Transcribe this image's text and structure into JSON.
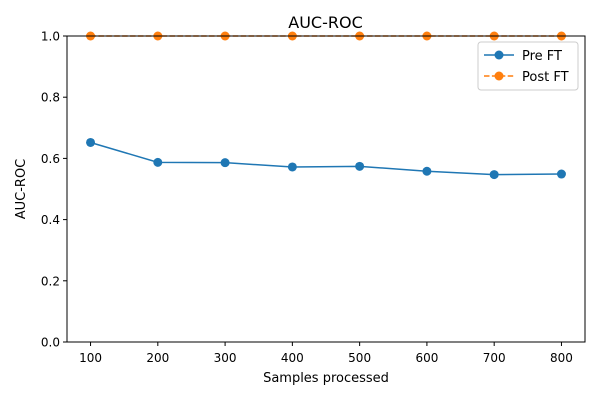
{
  "chart_data": {
    "type": "line",
    "title": "AUC-ROC",
    "xlabel": "Samples processed",
    "ylabel": "AUC-ROC",
    "x": [
      100,
      200,
      300,
      400,
      500,
      600,
      700,
      800
    ],
    "xticks": [
      "100",
      "200",
      "300",
      "400",
      "500",
      "600",
      "700",
      "800"
    ],
    "yticks": [
      "0.0",
      "0.2",
      "0.4",
      "0.6",
      "0.8",
      "1.0"
    ],
    "ylim": [
      0,
      1
    ],
    "xlim": [
      65,
      835
    ],
    "grid": false,
    "legend_position": "top-right",
    "series": [
      {
        "name": "Pre FT",
        "color": "#1f77b4",
        "linestyle": "solid",
        "values": [
          0.652,
          0.587,
          0.586,
          0.572,
          0.574,
          0.558,
          0.547,
          0.549
        ]
      },
      {
        "name": "Post FT",
        "color": "#ff7f0e",
        "linestyle": "dashed",
        "values": [
          1.0,
          1.0,
          1.0,
          1.0,
          1.0,
          1.0,
          1.0,
          1.0
        ]
      }
    ]
  }
}
